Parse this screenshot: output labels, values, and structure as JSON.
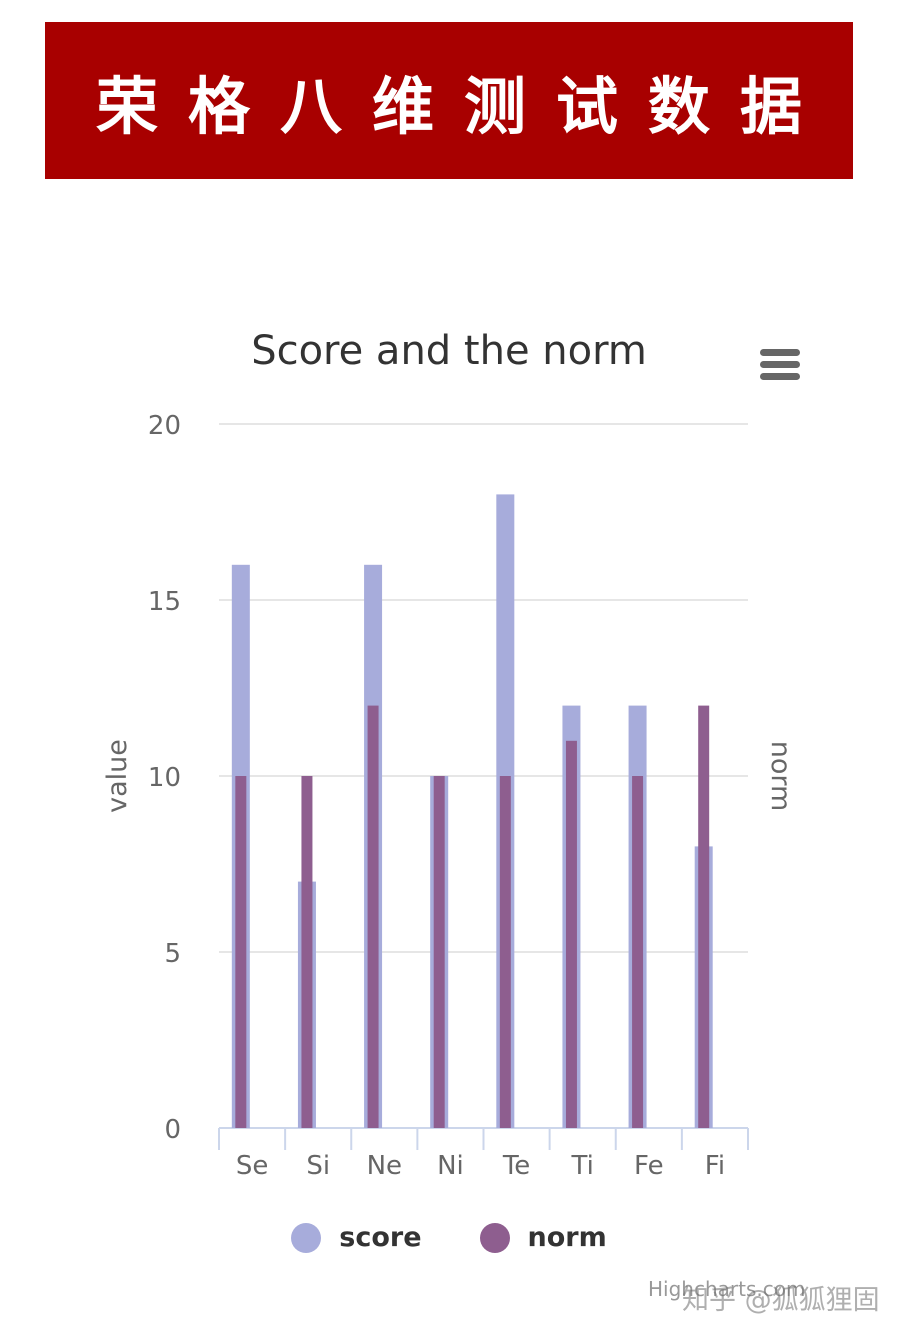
{
  "banner": {
    "title": "荣格八维测试数据"
  },
  "chart_data": {
    "type": "bar",
    "title": "Score and the norm",
    "xlabel": "",
    "ylabel": "value",
    "ylabel_right": "norm",
    "categories": [
      "Se",
      "Si",
      "Ne",
      "Ni",
      "Te",
      "Ti",
      "Fe",
      "Fi"
    ],
    "series": [
      {
        "name": "score",
        "values": [
          16,
          7,
          16,
          10,
          18,
          12,
          12,
          8
        ],
        "color": "#a7acdb"
      },
      {
        "name": "norm",
        "values": [
          10,
          10,
          12,
          10,
          10,
          11,
          10,
          12
        ],
        "color": "#8e5e8f"
      }
    ],
    "ylim": [
      0,
      20
    ],
    "yticks": [
      0,
      5,
      10,
      15,
      20
    ],
    "grid": true,
    "legend": "bottom-center"
  },
  "menu_icon": "hamburger-menu-icon",
  "credits": "Highcharts.com",
  "watermark": "知乎 @狐狐狸固",
  "colors": {
    "banner_bg": "#a80000",
    "grid": "#e6e6e6",
    "axis": "#ccd6eb",
    "text": "#333333",
    "tick_text": "#666666"
  }
}
